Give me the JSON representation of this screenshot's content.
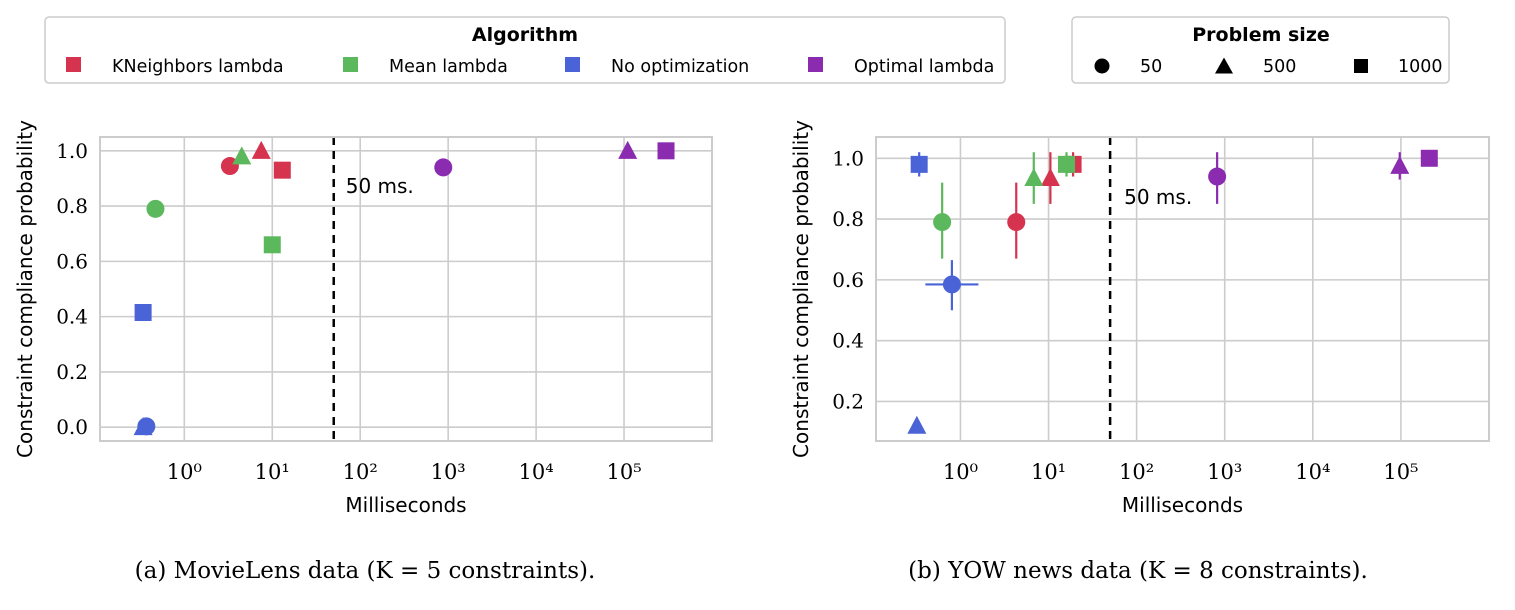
{
  "legend_algorithm": {
    "title": "Algorithm",
    "items": [
      {
        "label": "KNeighbors lambda",
        "color": "#d6334f"
      },
      {
        "label": "Mean lambda",
        "color": "#5cb85c"
      },
      {
        "label": "No optimization",
        "color": "#4a63d6"
      },
      {
        "label": "Optimal lambda",
        "color": "#8a2bb0"
      }
    ]
  },
  "legend_size": {
    "title": "Problem size",
    "items": [
      {
        "label": "50",
        "marker": "circle"
      },
      {
        "label": "500",
        "marker": "triangle"
      },
      {
        "label": "1000",
        "marker": "square"
      }
    ]
  },
  "chart_data": [
    {
      "type": "scatter",
      "xlabel": "Milliseconds",
      "ylabel": "Constraint compliance probability",
      "xscale": "log",
      "xlim": [
        0.11,
        1000000
      ],
      "ylim": [
        -0.05,
        1.05
      ],
      "yticks": [
        "0.0",
        "0.2",
        "0.4",
        "0.6",
        "0.8",
        "1.0"
      ],
      "xticks": [
        "10⁰",
        "10¹",
        "10²",
        "10³",
        "10⁴",
        "10⁵"
      ],
      "grid": true,
      "vline": {
        "x": 50,
        "label": "50 ms."
      },
      "caption": "(a) MovieLens data (K = 5 constraints).",
      "points": [
        {
          "algorithm": "KNeighbors lambda",
          "size": "50",
          "x": 3.3,
          "y": 0.945
        },
        {
          "algorithm": "KNeighbors lambda",
          "size": "500",
          "x": 7.5,
          "y": 1.0
        },
        {
          "algorithm": "KNeighbors lambda",
          "size": "1000",
          "x": 13.0,
          "y": 0.93
        },
        {
          "algorithm": "Mean lambda",
          "size": "50",
          "x": 0.47,
          "y": 0.79
        },
        {
          "algorithm": "Mean lambda",
          "size": "500",
          "x": 4.5,
          "y": 0.98
        },
        {
          "algorithm": "Mean lambda",
          "size": "1000",
          "x": 10.0,
          "y": 0.66
        },
        {
          "algorithm": "No optimization",
          "size": "50",
          "x": 0.37,
          "y": 0.003
        },
        {
          "algorithm": "No optimization",
          "size": "500",
          "x": 0.34,
          "y": 0.0
        },
        {
          "algorithm": "No optimization",
          "size": "1000",
          "x": 0.34,
          "y": 0.415
        },
        {
          "algorithm": "Optimal lambda",
          "size": "50",
          "x": 880,
          "y": 0.94
        },
        {
          "algorithm": "Optimal lambda",
          "size": "500",
          "x": 110000,
          "y": 1.0
        },
        {
          "algorithm": "Optimal lambda",
          "size": "1000",
          "x": 300000,
          "y": 1.0
        }
      ]
    },
    {
      "type": "scatter",
      "xlabel": "Milliseconds",
      "ylabel": "Constraint compliance probability",
      "xscale": "log",
      "xlim": [
        0.11,
        1000000
      ],
      "ylim": [
        0.07,
        1.07
      ],
      "yticks": [
        "0.2",
        "0.4",
        "0.6",
        "0.8",
        "1.0"
      ],
      "xticks": [
        "10⁰",
        "10¹",
        "10²",
        "10³",
        "10⁴",
        "10⁵"
      ],
      "grid": true,
      "vline": {
        "x": 50,
        "label": "50 ms."
      },
      "caption": "(b) YOW news data (K = 8 constraints).",
      "points": [
        {
          "algorithm": "KNeighbors lambda",
          "size": "50",
          "x": 4.3,
          "y": 0.79,
          "yerr": [
            0.67,
            0.92
          ]
        },
        {
          "algorithm": "KNeighbors lambda",
          "size": "500",
          "x": 10.5,
          "y": 0.935,
          "yerr": [
            0.85,
            1.02
          ]
        },
        {
          "algorithm": "KNeighbors lambda",
          "size": "1000",
          "x": 19.0,
          "y": 0.98,
          "yerr": [
            0.94,
            1.02
          ]
        },
        {
          "algorithm": "Mean lambda",
          "size": "50",
          "x": 0.62,
          "y": 0.79,
          "yerr": [
            0.67,
            0.92
          ]
        },
        {
          "algorithm": "Mean lambda",
          "size": "500",
          "x": 6.8,
          "y": 0.935,
          "yerr": [
            0.85,
            1.02
          ]
        },
        {
          "algorithm": "Mean lambda",
          "size": "1000",
          "x": 16.0,
          "y": 0.98,
          "yerr": [
            0.94,
            1.02
          ]
        },
        {
          "algorithm": "No optimization",
          "size": "50",
          "x": 0.8,
          "y": 0.585,
          "yerr": [
            0.5,
            0.665
          ],
          "xerr": [
            0.4,
            1.6
          ]
        },
        {
          "algorithm": "No optimization",
          "size": "500",
          "x": 0.32,
          "y": 0.12
        },
        {
          "algorithm": "No optimization",
          "size": "1000",
          "x": 0.34,
          "y": 0.98,
          "yerr": [
            0.94,
            1.02
          ]
        },
        {
          "algorithm": "Optimal lambda",
          "size": "50",
          "x": 820,
          "y": 0.94,
          "yerr": [
            0.85,
            1.02
          ]
        },
        {
          "algorithm": "Optimal lambda",
          "size": "500",
          "x": 97000,
          "y": 0.975,
          "yerr": [
            0.93,
            1.02
          ]
        },
        {
          "algorithm": "Optimal lambda",
          "size": "1000",
          "x": 210000,
          "y": 1.0
        }
      ]
    }
  ]
}
